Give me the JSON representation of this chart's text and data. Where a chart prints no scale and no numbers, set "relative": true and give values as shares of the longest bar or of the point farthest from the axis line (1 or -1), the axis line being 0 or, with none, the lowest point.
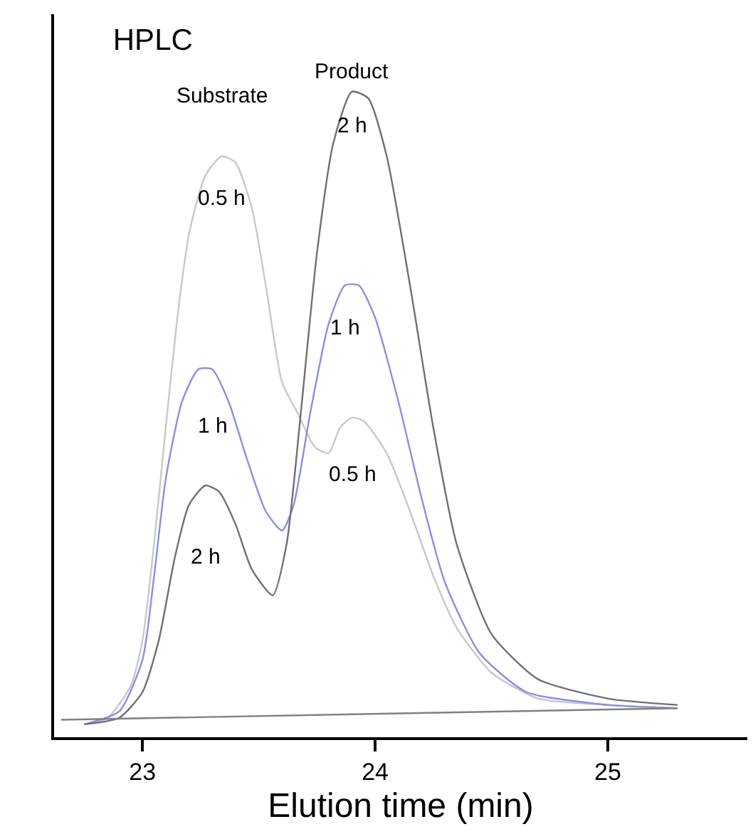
{
  "chart_data": {
    "type": "line",
    "title": "HPLC",
    "xlabel": "Elution time (min)",
    "relative": true,
    "xlim": [
      22.62,
      25.6
    ],
    "xticks": [
      23,
      24,
      25
    ],
    "grid": false,
    "marker": "none",
    "line_style": "solid",
    "series": [
      {
        "color": "#c8c8c8",
        "x": [
          22.75,
          22.85,
          22.95,
          23.0,
          23.05,
          23.1,
          23.15,
          23.2,
          23.27,
          23.34,
          23.4,
          23.47,
          23.53,
          23.6,
          23.67,
          23.74,
          23.8,
          23.85,
          23.9,
          23.95,
          24.05,
          24.15,
          24.25,
          24.35,
          24.5,
          24.7,
          25.0,
          25.3
        ],
        "values": [
          0.02,
          0.03,
          0.08,
          0.15,
          0.3,
          0.48,
          0.65,
          0.78,
          0.87,
          0.9,
          0.89,
          0.82,
          0.7,
          0.55,
          0.5,
          0.45,
          0.44,
          0.48,
          0.495,
          0.49,
          0.44,
          0.35,
          0.25,
          0.17,
          0.1,
          0.06,
          0.05,
          0.045
        ]
      },
      {
        "color": "#8c8ce6",
        "x": [
          22.75,
          22.9,
          23.0,
          23.05,
          23.1,
          23.17,
          23.24,
          23.3,
          23.37,
          23.45,
          23.53,
          23.6,
          23.65,
          23.72,
          23.8,
          23.87,
          23.93,
          24.0,
          24.1,
          24.2,
          24.3,
          24.45,
          24.65,
          25.0,
          25.3
        ],
        "values": [
          0.02,
          0.04,
          0.12,
          0.25,
          0.4,
          0.52,
          0.57,
          0.57,
          0.52,
          0.43,
          0.35,
          0.32,
          0.36,
          0.5,
          0.64,
          0.7,
          0.7,
          0.65,
          0.52,
          0.37,
          0.24,
          0.13,
          0.07,
          0.05,
          0.045
        ]
      },
      {
        "color": "#707070",
        "x": [
          22.75,
          22.9,
          23.0,
          23.07,
          23.14,
          23.2,
          23.27,
          23.33,
          23.4,
          23.47,
          23.56,
          23.62,
          23.68,
          23.75,
          23.82,
          23.9,
          23.97,
          24.05,
          24.15,
          24.25,
          24.35,
          24.5,
          24.7,
          25.0,
          25.3
        ],
        "values": [
          0.02,
          0.03,
          0.07,
          0.15,
          0.28,
          0.36,
          0.39,
          0.38,
          0.33,
          0.26,
          0.22,
          0.3,
          0.5,
          0.75,
          0.92,
          1.0,
          0.99,
          0.9,
          0.7,
          0.48,
          0.3,
          0.16,
          0.09,
          0.06,
          0.05
        ]
      },
      {
        "color": "#808080",
        "x": [
          22.65,
          25.3
        ],
        "values": [
          0.027,
          0.045
        ]
      }
    ],
    "annotations": [
      {
        "text": "Substrate",
        "x": 23.34,
        "y": 0.9
      },
      {
        "text": "Product",
        "x": 23.9,
        "y": 1.0
      },
      {
        "text": "0.5 h",
        "x": 23.34,
        "y": 0.9
      },
      {
        "text": "1 h",
        "x": 23.3,
        "y": 0.57
      },
      {
        "text": "2 h",
        "x": 23.27,
        "y": 0.39
      },
      {
        "text": "2 h",
        "x": 23.9,
        "y": 1.0
      },
      {
        "text": "1 h",
        "x": 23.87,
        "y": 0.7
      },
      {
        "text": "0.5 h",
        "x": 23.9,
        "y": 0.495
      }
    ]
  }
}
